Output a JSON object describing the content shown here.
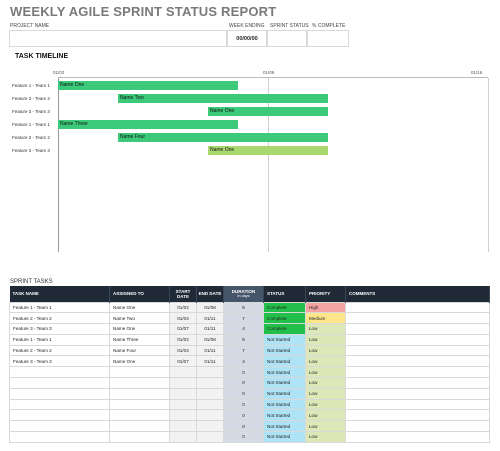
{
  "title": "WEEKLY AGILE SPRINT STATUS REPORT",
  "header": {
    "project_name_label": "PROJECT NAME",
    "project_name_value": "",
    "week_ending_label": "WEEK ENDING",
    "week_ending_value": "00/00/00",
    "sprint_status_label": "SPRINT STATUS",
    "sprint_status_value": "",
    "pct_complete_label": "% COMPLETE",
    "pct_complete_value": ""
  },
  "timeline": {
    "title": "TASK TIMELINE",
    "ticks": [
      "01/02",
      "01/09",
      "01/16"
    ],
    "rows": [
      {
        "label": "Feature 1 - Team 1",
        "name": "Name One",
        "start": 0,
        "end": 6,
        "color": "#3cc97a"
      },
      {
        "label": "Feature 2 - Team 2",
        "name": "Name Two",
        "start": 2,
        "end": 9,
        "color": "#3cc97a"
      },
      {
        "label": "Feature 3 - Team 3",
        "name": "Name One",
        "start": 5,
        "end": 9,
        "color": "#3cc97a"
      },
      {
        "label": "Feature 1 - Team 1",
        "name": "Name Three",
        "start": 0,
        "end": 6,
        "color": "#3cc97a"
      },
      {
        "label": "Feature 2 - Team 2",
        "name": "Name Four",
        "start": 2,
        "end": 9,
        "color": "#3cc97a"
      },
      {
        "label": "Feature 3 - Team 3",
        "name": "Name One",
        "start": 5,
        "end": 9,
        "color": "#a8d86e"
      }
    ]
  },
  "sprint": {
    "title": "SPRINT TASKS",
    "columns": {
      "task": "TASK NAME",
      "assigned": "ASSIGNED TO",
      "start": "START DATE",
      "end": "END DATE",
      "duration": "DURATION",
      "duration_sub": "in days",
      "status": "STATUS",
      "priority": "PRIORITY",
      "comments": "COMMENTS"
    },
    "rows": [
      {
        "task": "Feature 1 - Team 1",
        "assigned": "Name One",
        "start": "01/02",
        "end": "01/08",
        "duration": "6",
        "status": "Complete",
        "priority": "High",
        "status_color": "#22c04a",
        "priority_color": "#f5a3a3"
      },
      {
        "task": "Feature 2 - Team 2",
        "assigned": "Name Two",
        "start": "01/04",
        "end": "01/11",
        "duration": "7",
        "status": "Complete",
        "priority": "Medium",
        "status_color": "#22c04a",
        "priority_color": "#fde68a"
      },
      {
        "task": "Feature 3 - Team 3",
        "assigned": "Name One",
        "start": "01/07",
        "end": "01/11",
        "duration": "4",
        "status": "Complete",
        "priority": "Low",
        "status_color": "#22c04a",
        "priority_color": "#dde8b8"
      },
      {
        "task": "Feature 1 - Team 1",
        "assigned": "Name Three",
        "start": "01/02",
        "end": "01/08",
        "duration": "6",
        "status": "Not Started",
        "priority": "Low",
        "status_color": "#aee3f5",
        "priority_color": "#dde8b8"
      },
      {
        "task": "Feature 2 - Team 2",
        "assigned": "Name Four",
        "start": "01/04",
        "end": "01/11",
        "duration": "7",
        "status": "Not Started",
        "priority": "Low",
        "status_color": "#aee3f5",
        "priority_color": "#dde8b8"
      },
      {
        "task": "Feature 3 - Team 3",
        "assigned": "Name One",
        "start": "01/07",
        "end": "01/11",
        "duration": "4",
        "status": "Not Started",
        "priority": "Low",
        "status_color": "#aee3f5",
        "priority_color": "#dde8b8"
      },
      {
        "task": "",
        "assigned": "",
        "start": "",
        "end": "",
        "duration": "0",
        "status": "Not Started",
        "priority": "Low",
        "status_color": "#aee3f5",
        "priority_color": "#dde8b8"
      },
      {
        "task": "",
        "assigned": "",
        "start": "",
        "end": "",
        "duration": "0",
        "status": "Not Started",
        "priority": "Low",
        "status_color": "#aee3f5",
        "priority_color": "#dde8b8"
      },
      {
        "task": "",
        "assigned": "",
        "start": "",
        "end": "",
        "duration": "0",
        "status": "Not Started",
        "priority": "Low",
        "status_color": "#aee3f5",
        "priority_color": "#dde8b8"
      },
      {
        "task": "",
        "assigned": "",
        "start": "",
        "end": "",
        "duration": "0",
        "status": "Not Started",
        "priority": "Low",
        "status_color": "#aee3f5",
        "priority_color": "#dde8b8"
      },
      {
        "task": "",
        "assigned": "",
        "start": "",
        "end": "",
        "duration": "0",
        "status": "Not Started",
        "priority": "Low",
        "status_color": "#aee3f5",
        "priority_color": "#dde8b8"
      },
      {
        "task": "",
        "assigned": "",
        "start": "",
        "end": "",
        "duration": "0",
        "status": "Not Started",
        "priority": "Low",
        "status_color": "#aee3f5",
        "priority_color": "#dde8b8"
      },
      {
        "task": "",
        "assigned": "",
        "start": "",
        "end": "",
        "duration": "0",
        "status": "Not Started",
        "priority": "Low",
        "status_color": "#aee3f5",
        "priority_color": "#dde8b8"
      }
    ]
  }
}
